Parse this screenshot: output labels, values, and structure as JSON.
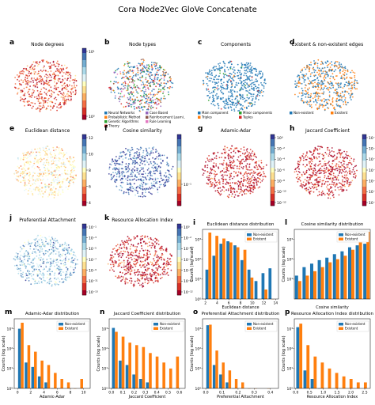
{
  "figure_title": "Cora Node2Vec GloVe Concatenate",
  "colors": {
    "non_existent": "#1f77b4",
    "existent": "#ff7f0e"
  },
  "chart_data": [
    {
      "id": "a",
      "type": "scatter",
      "title": "Node degrees",
      "colorbar": "RdYlBu",
      "colorbar_scale": "log",
      "colorbar_ticks": [
        "10¹",
        "10⁰"
      ]
    },
    {
      "id": "b",
      "type": "scatter",
      "title": "Node types",
      "legend": [
        "Neural Networks",
        "Probabilistic Method",
        "Genetic Algorithms",
        "Theory",
        "Case Based",
        "Reinforcement Learni..",
        "Rule Learning"
      ],
      "legend_colors": [
        "#1f77b4",
        "#ff7f0e",
        "#2ca02c",
        "#d62728",
        "#9467bd",
        "#8c564b",
        "#e377c2"
      ]
    },
    {
      "id": "c",
      "type": "scatter",
      "title": "Components",
      "legend": [
        "Main component",
        "Triples",
        "Minor components",
        "Tuples"
      ],
      "legend_colors": [
        "#1f77b4",
        "#ff7f0e",
        "#2ca02c",
        "#d62728"
      ]
    },
    {
      "id": "d",
      "type": "scatter",
      "title": "Existent & non-existent edges",
      "legend": [
        "Non-existent",
        "Existent"
      ],
      "legend_colors": [
        "#1f77b4",
        "#ff7f0e"
      ]
    },
    {
      "id": "e",
      "type": "scatter",
      "title": "Euclidean distance",
      "colorbar": "RdYlBu",
      "colorbar_ticks": [
        "12",
        "10",
        "8",
        "6",
        "4"
      ]
    },
    {
      "id": "f",
      "type": "scatter",
      "title": "Cosine similarity",
      "colorbar": "RdYlBu",
      "colorbar_scale": "log",
      "colorbar_ticks": [
        "10⁻¹"
      ]
    },
    {
      "id": "g",
      "type": "scatter",
      "title": "Adamic-Adar",
      "colorbar": "RdYlBu",
      "colorbar_scale": "log",
      "colorbar_ticks": [
        "10⁰",
        "10⁻²",
        "10⁻⁴",
        "10⁻⁶",
        "10⁻⁸",
        "10⁻¹⁰",
        "10⁻¹²"
      ]
    },
    {
      "id": "h",
      "type": "scatter",
      "title": "Jaccard Coefficient",
      "colorbar": "RdYlBu",
      "colorbar_scale": "log",
      "colorbar_ticks": [
        "10⁻¹",
        "10⁻³",
        "10⁻⁵",
        "10⁻⁷",
        "10⁻⁹",
        "10⁻¹¹",
        "10⁻¹³"
      ]
    },
    {
      "id": "j",
      "type": "scatter",
      "title": "Preferential Attachment",
      "colorbar": "RdYlBu",
      "colorbar_scale": "log",
      "colorbar_ticks": [
        "10⁻¹",
        "10⁻³",
        "10⁻⁵",
        "10⁻⁷",
        "10⁻⁹",
        "10⁻¹¹",
        "10⁻¹³"
      ]
    },
    {
      "id": "k",
      "type": "scatter",
      "title": "Resource Allocation Index",
      "colorbar": "RdYlBu",
      "colorbar_scale": "log",
      "colorbar_ticks": [
        "10⁰",
        "10⁻²",
        "10⁻⁴",
        "10⁻⁶",
        "10⁻⁸",
        "10⁻¹⁰",
        "10⁻¹²"
      ]
    },
    {
      "id": "i",
      "type": "bar",
      "title": "Euclidean distance distribution",
      "xlabel": "Euclidean distance",
      "ylabel": "Counts (log scale)",
      "y_scale": "log",
      "ylim_exp": [
        0,
        3.5
      ],
      "y_ticks": [
        "10⁰",
        "10¹",
        "10²",
        "10³"
      ],
      "x_ticks": [
        "2",
        "4",
        "6",
        "8",
        "10",
        "12",
        "14"
      ],
      "xlim": [
        1.5,
        14.5
      ],
      "categories": [
        2.5,
        3.7,
        4.9,
        6.1,
        7.3,
        8.5,
        9.7,
        10.9,
        12.1,
        13.3
      ],
      "series": [
        {
          "name": "Non-existent",
          "values": [
            30,
            150,
            600,
            800,
            500,
            90,
            30,
            8,
            20,
            35
          ]
        },
        {
          "name": "Existent",
          "values": [
            2200,
            1500,
            1100,
            700,
            400,
            300,
            12,
            1,
            3,
            1
          ]
        }
      ]
    },
    {
      "id": "l",
      "type": "bar",
      "title": "Cosine similarity distribution",
      "xlabel": "Cosine similarity",
      "ylabel": "Counts (log scale)",
      "y_scale": "log",
      "ylim_exp": [
        0,
        3.5
      ],
      "y_ticks": [
        "10¹",
        "10²",
        "10³"
      ],
      "x_ticks": [],
      "xlim": [
        0,
        1
      ],
      "categories": [
        0.05,
        0.15,
        0.25,
        0.35,
        0.45,
        0.55,
        0.65,
        0.75,
        0.85,
        0.95
      ],
      "series": [
        {
          "name": "Non-existent",
          "values": [
            15,
            40,
            60,
            90,
            120,
            180,
            250,
            400,
            500,
            600
          ]
        },
        {
          "name": "Existent",
          "values": [
            8,
            15,
            25,
            40,
            70,
            100,
            150,
            300,
            700,
            2400
          ]
        }
      ]
    },
    {
      "id": "m",
      "type": "bar",
      "title": "Adamic-Adar distribution",
      "xlabel": "Adamic-Adar",
      "ylabel": "Counts (log scale)",
      "y_scale": "log",
      "ylim_exp": [
        0,
        3.5
      ],
      "y_ticks": [
        "10⁰",
        "10¹",
        "10²",
        "10³"
      ],
      "x_ticks": [
        "0",
        "2",
        "4",
        "6",
        "8",
        "10"
      ],
      "xlim": [
        -0.5,
        11
      ],
      "categories": [
        0.5,
        1.5,
        2.5,
        3.5,
        4.5,
        5.5,
        6.5,
        7.5,
        8.5,
        9.5
      ],
      "series": [
        {
          "name": "Non-existent",
          "values": [
            1000,
            20,
            12,
            4,
            2,
            1,
            1,
            0,
            0,
            0
          ]
        },
        {
          "name": "Existent",
          "values": [
            2000,
            150,
            70,
            25,
            15,
            6,
            3,
            2,
            1,
            3
          ]
        }
      ]
    },
    {
      "id": "n",
      "type": "bar",
      "title": "Jaccard Coefficient distribution",
      "xlabel": "Jaccard Coefficient",
      "ylabel": "Counts (log scale)",
      "y_scale": "log",
      "ylim_exp": [
        0,
        3.5
      ],
      "y_ticks": [
        "10⁰",
        "10¹",
        "10²",
        "10³"
      ],
      "x_ticks": [
        "0.0",
        "0.1",
        "0.2",
        "0.3",
        "0.4",
        "0.5",
        "0.6"
      ],
      "xlim": [
        -0.02,
        0.65
      ],
      "categories": [
        0.03,
        0.09,
        0.15,
        0.21,
        0.27,
        0.33,
        0.39,
        0.45,
        0.51,
        0.57
      ],
      "series": [
        {
          "name": "Non-existent",
          "values": [
            1100,
            25,
            15,
            5,
            3,
            2,
            1,
            1,
            0,
            0
          ]
        },
        {
          "name": "Existent",
          "values": [
            700,
            400,
            200,
            150,
            120,
            60,
            40,
            20,
            10,
            40
          ]
        }
      ]
    },
    {
      "id": "o",
      "type": "bar",
      "title": "Preferential Attachment distribution",
      "xlabel": "Preferential Attachment",
      "ylabel": "Counts (log scale)",
      "y_scale": "log",
      "ylim_exp": [
        0,
        3.5
      ],
      "y_ticks": [
        "10⁰",
        "10¹",
        "10²",
        "10³"
      ],
      "x_ticks": [
        "0.0",
        "0.1",
        "0.2",
        "0.3",
        "0.4"
      ],
      "xlim": [
        -0.02,
        0.45
      ],
      "categories": [
        0.02,
        0.06,
        0.1,
        0.14,
        0.18,
        0.22,
        0.26,
        0.3,
        0.34,
        0.38
      ],
      "series": [
        {
          "name": "Non-existent",
          "values": [
            1500,
            15,
            5,
            2,
            1,
            0,
            0,
            0,
            0,
            0
          ]
        },
        {
          "name": "Existent",
          "values": [
            1600,
            80,
            20,
            8,
            3,
            2,
            1,
            1,
            0,
            1
          ]
        }
      ]
    },
    {
      "id": "p",
      "type": "bar",
      "title": "Resource Allocation Index distribution",
      "xlabel": "Resource Allocation Index",
      "ylabel": "Counts (log scale)",
      "y_scale": "log",
      "ylim_exp": [
        0,
        3.5
      ],
      "y_ticks": [
        "10⁰",
        "10¹",
        "10²",
        "10³"
      ],
      "x_ticks": [
        "0.0",
        "0.5",
        "1.0",
        "1.5",
        "2.0",
        "2.5"
      ],
      "xlim": [
        -0.05,
        2.7
      ],
      "categories": [
        0.13,
        0.39,
        0.65,
        0.91,
        1.17,
        1.43,
        1.69,
        1.95,
        2.21,
        2.47
      ],
      "series": [
        {
          "name": "Non-existent",
          "values": [
            1200,
            8,
            3,
            1,
            0,
            0,
            0,
            0,
            0,
            0
          ]
        },
        {
          "name": "Existent",
          "values": [
            1800,
            150,
            40,
            20,
            10,
            6,
            4,
            3,
            2,
            2
          ]
        }
      ]
    }
  ]
}
